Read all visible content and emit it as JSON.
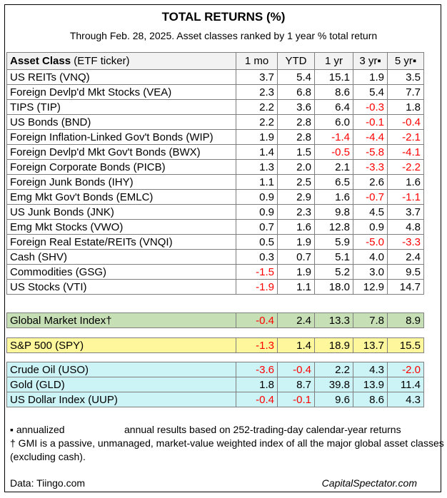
{
  "title": "TOTAL RETURNS (%)",
  "subtitle": "Through Feb. 28, 2025. Asset classes ranked by 1 year % total return",
  "header": {
    "asset_class_bold": "Asset Class",
    "asset_class_rest": " (ETF ticker)",
    "cols": [
      "1 mo",
      "YTD",
      "1 yr",
      "3 yr▪",
      "5 yr▪"
    ]
  },
  "rows": [
    {
      "name": "US REITs (VNQ)",
      "v": [
        "3.7",
        "5.4",
        "15.1",
        "1.9",
        "3.5"
      ]
    },
    {
      "name": "Foreign Devlp'd Mkt Stocks (VEA)",
      "v": [
        "2.3",
        "6.8",
        "8.6",
        "5.4",
        "7.7"
      ]
    },
    {
      "name": "TIPS (TIP)",
      "v": [
        "2.2",
        "3.6",
        "6.4",
        "-0.3",
        "1.8"
      ]
    },
    {
      "name": "US Bonds (BND)",
      "v": [
        "2.2",
        "2.8",
        "6.0",
        "-0.1",
        "-0.4"
      ]
    },
    {
      "name": "Foreign Inflation-Linked Gov't Bonds (WIP)",
      "v": [
        "1.9",
        "2.8",
        "-1.4",
        "-4.4",
        "-2.1"
      ]
    },
    {
      "name": "Foreign Devlp'd Mkt Gov't Bonds (BWX)",
      "v": [
        "1.4",
        "1.5",
        "-0.5",
        "-5.8",
        "-4.1"
      ]
    },
    {
      "name": "Foreign Corporate Bonds (PICB)",
      "v": [
        "1.3",
        "2.0",
        "2.1",
        "-3.3",
        "-2.2"
      ]
    },
    {
      "name": "Foreign Junk Bonds (IHY)",
      "v": [
        "1.1",
        "2.5",
        "6.5",
        "2.6",
        "1.6"
      ]
    },
    {
      "name": "Emg Mkt Gov't Bonds (EMLC)",
      "v": [
        "0.9",
        "2.9",
        "1.6",
        "-0.7",
        "-1.1"
      ]
    },
    {
      "name": "US Junk Bonds (JNK)",
      "v": [
        "0.9",
        "2.3",
        "9.8",
        "4.5",
        "3.7"
      ]
    },
    {
      "name": "Emg Mkt Stocks (VWO)",
      "v": [
        "0.7",
        "1.6",
        "12.8",
        "0.9",
        "4.8"
      ]
    },
    {
      "name": "Foreign Real Estate/REITs (VNQI)",
      "v": [
        "0.5",
        "1.9",
        "5.9",
        "-5.0",
        "-3.3"
      ]
    },
    {
      "name": "Cash (SHV)",
      "v": [
        "0.3",
        "0.7",
        "5.1",
        "4.0",
        "2.4"
      ]
    },
    {
      "name": "Commodities (GSG)",
      "v": [
        "-1.5",
        "1.9",
        "5.2",
        "3.0",
        "9.5"
      ]
    },
    {
      "name": "US Stocks (VTI)",
      "v": [
        "-1.9",
        "1.1",
        "18.0",
        "12.9",
        "14.7"
      ]
    }
  ],
  "gmi": {
    "name": "Global Market Index†",
    "v": [
      "-0.4",
      "2.4",
      "13.3",
      "7.8",
      "8.9"
    ]
  },
  "spy": {
    "name": "S&P 500 (SPY)",
    "v": [
      "-1.3",
      "1.4",
      "18.9",
      "13.7",
      "15.5"
    ]
  },
  "commodity_rows": [
    {
      "name": "Crude Oil (USO)",
      "v": [
        "-3.6",
        "-0.4",
        "2.2",
        "4.3",
        "-2.0"
      ]
    },
    {
      "name": "Gold (GLD)",
      "v": [
        "1.8",
        "8.7",
        "39.8",
        "13.9",
        "11.4"
      ]
    },
    {
      "name": "US Dollar Index (UUP)",
      "v": [
        "-0.4",
        "-0.1",
        "9.6",
        "8.6",
        "4.3"
      ]
    }
  ],
  "notes": {
    "annualized_symbol": "▪ annualized",
    "annualized_text": "annual results based on 252-trading-day calendar-year returns",
    "gmi_note": "† GMI is a passive, unmanaged, market-value weighted index of all the major global asset classes (excluding cash)."
  },
  "footer": {
    "source": "Data: Tiingo.com",
    "brand": "CapitalSpectator.com"
  },
  "colors": {
    "negative": "#ff0000",
    "gmi_fill": "#c6dfb4",
    "spy_fill": "#fff79c",
    "commodity_fill": "#ccf3f6",
    "header_fill": "#f2f2f2"
  }
}
